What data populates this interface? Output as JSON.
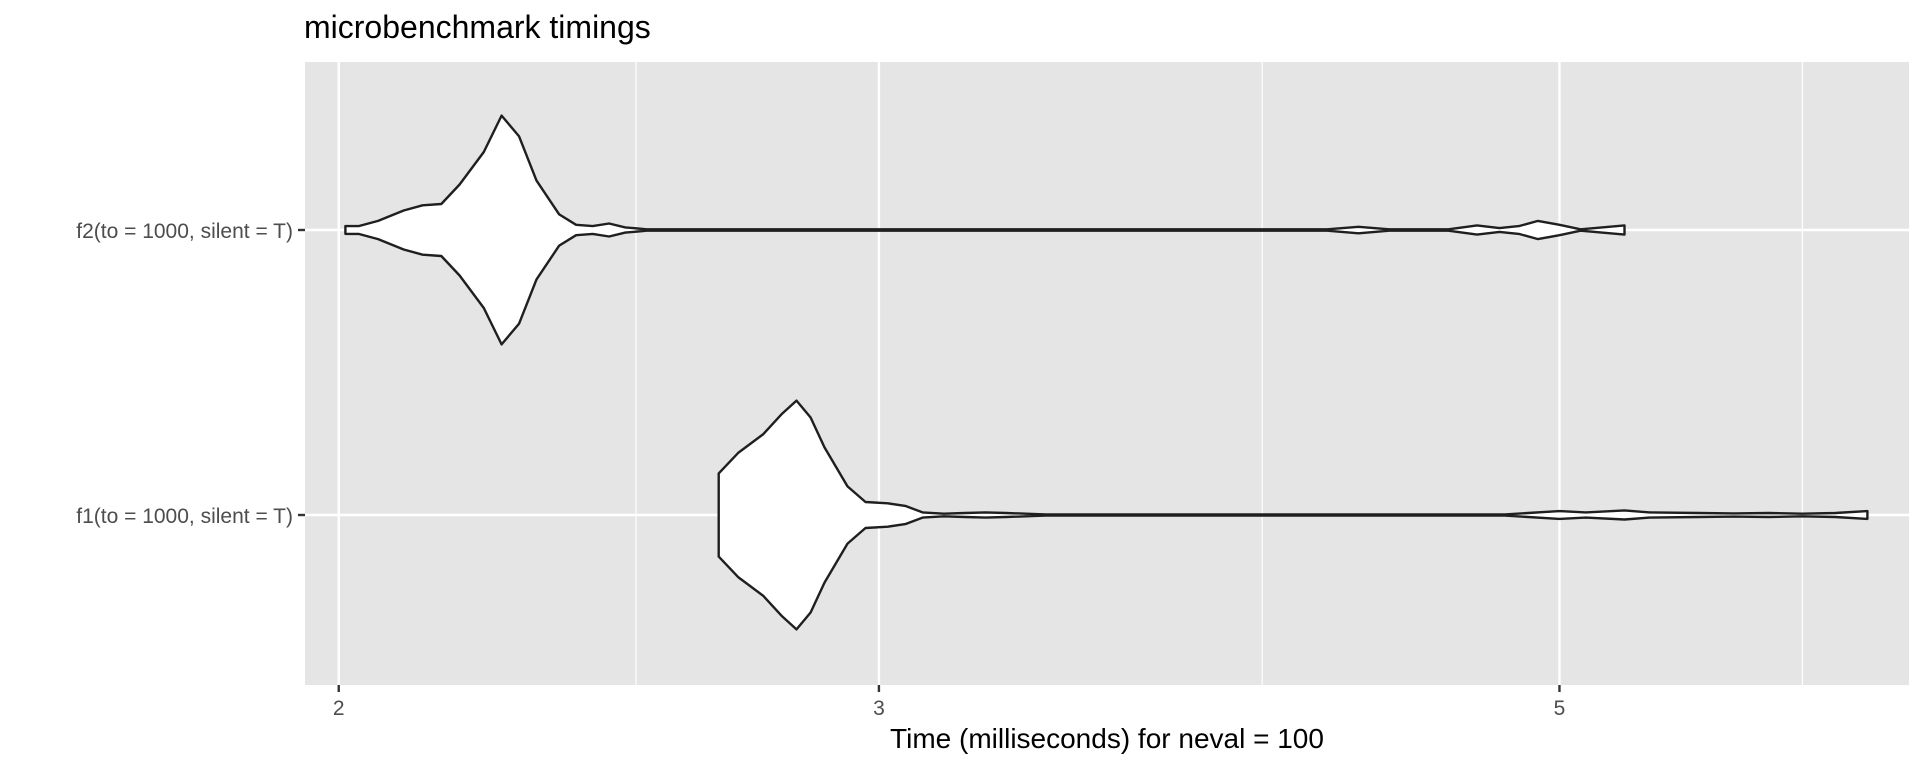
{
  "chart_data": {
    "type": "violin",
    "title": "microbenchmark timings",
    "xlabel": "Time (milliseconds) for neval = 100",
    "ylabel": "",
    "x_scale": "log",
    "xlim": [
      1.95,
      6.5
    ],
    "x_ticks": [
      2,
      3,
      5
    ],
    "x_minor_ticks": [
      2.5,
      4,
      6
    ],
    "grid": true,
    "categories": [
      "f2(to = 1000, silent = T)",
      "f1(to = 1000, silent = T)"
    ],
    "colors": {
      "panel": "#e5e5e5",
      "grid": "#ffffff",
      "outline": "#1f1f1f",
      "fill": "#ffffff"
    },
    "violins": [
      {
        "category": "f2(to = 1000, silent = T)",
        "range": [
          2.01,
          5.25
        ],
        "density": [
          [
            2.01,
            0.03
          ],
          [
            2.03,
            0.03
          ],
          [
            2.06,
            0.07
          ],
          [
            2.1,
            0.15
          ],
          [
            2.13,
            0.19
          ],
          [
            2.16,
            0.2
          ],
          [
            2.19,
            0.35
          ],
          [
            2.23,
            0.6
          ],
          [
            2.26,
            0.88
          ],
          [
            2.29,
            0.72
          ],
          [
            2.32,
            0.38
          ],
          [
            2.36,
            0.12
          ],
          [
            2.39,
            0.04
          ],
          [
            2.42,
            0.03
          ],
          [
            2.45,
            0.05
          ],
          [
            2.48,
            0.02
          ],
          [
            2.52,
            0.005
          ],
          [
            4.2,
            0.005
          ],
          [
            4.3,
            0.025
          ],
          [
            4.4,
            0.005
          ],
          [
            4.6,
            0.005
          ],
          [
            4.7,
            0.035
          ],
          [
            4.78,
            0.015
          ],
          [
            4.85,
            0.03
          ],
          [
            4.92,
            0.07
          ],
          [
            5.0,
            0.04
          ],
          [
            5.08,
            0.005
          ],
          [
            5.25,
            0.035
          ]
        ]
      },
      {
        "category": "f1(to = 1000, silent = T)",
        "range": [
          2.66,
          6.3
        ],
        "density": [
          [
            2.66,
            0.1
          ],
          [
            2.66,
            0.2
          ],
          [
            2.66,
            0.32
          ],
          [
            2.7,
            0.48
          ],
          [
            2.75,
            0.62
          ],
          [
            2.79,
            0.78
          ],
          [
            2.82,
            0.88
          ],
          [
            2.85,
            0.75
          ],
          [
            2.88,
            0.52
          ],
          [
            2.93,
            0.22
          ],
          [
            2.97,
            0.1
          ],
          [
            3.02,
            0.09
          ],
          [
            3.06,
            0.07
          ],
          [
            3.1,
            0.02
          ],
          [
            3.15,
            0.01
          ],
          [
            3.2,
            0.015
          ],
          [
            3.25,
            0.02
          ],
          [
            3.3,
            0.015
          ],
          [
            3.4,
            0.005
          ],
          [
            3.6,
            0.005
          ],
          [
            4.8,
            0.005
          ],
          [
            5.0,
            0.03
          ],
          [
            5.1,
            0.02
          ],
          [
            5.25,
            0.035
          ],
          [
            5.35,
            0.02
          ],
          [
            5.55,
            0.015
          ],
          [
            5.7,
            0.012
          ],
          [
            5.85,
            0.015
          ],
          [
            6.0,
            0.01
          ],
          [
            6.15,
            0.015
          ],
          [
            6.3,
            0.03
          ]
        ]
      }
    ]
  }
}
